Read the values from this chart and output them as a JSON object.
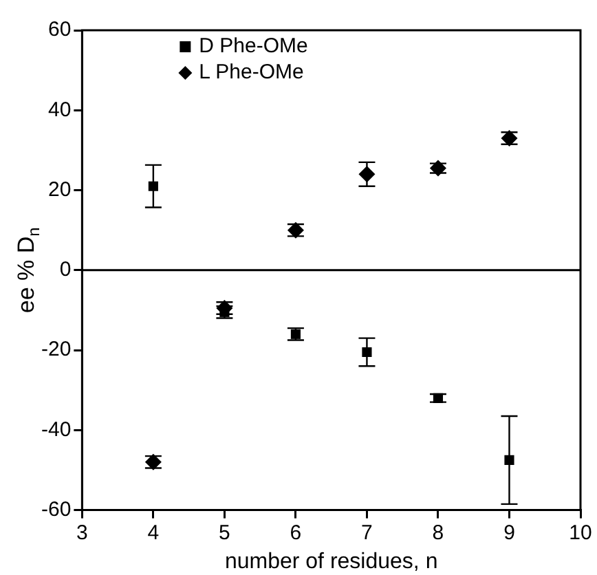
{
  "chart_data": {
    "type": "scatter",
    "xlabel": "number of residues, n",
    "ylabel": "ee % D$_{n}$",
    "x": [
      4,
      5,
      6,
      7,
      8,
      9
    ],
    "series": [
      {
        "name": "D Phe-OMe",
        "color": "#000000",
        "marker": "square",
        "values": [
          21,
          -10.5,
          -16,
          -20.5,
          -32,
          -47.5
        ],
        "errors": [
          5.3,
          1.5,
          1.5,
          3.5,
          1,
          11
        ]
      },
      {
        "name": "L Phe-OMe",
        "color": "#000000",
        "marker": "diamond",
        "values": [
          -48,
          -9.5,
          10,
          24,
          25.5,
          33
        ],
        "errors": [
          1.5,
          1.5,
          1.5,
          3,
          1.2,
          1.5
        ]
      }
    ],
    "xlim": [
      3,
      10
    ],
    "xticks": [
      3,
      4,
      5,
      6,
      7,
      8,
      9,
      10
    ],
    "ylim": [
      -60,
      60
    ],
    "yticks": [
      -60,
      -40,
      -20,
      0,
      20,
      40,
      60
    ],
    "ref_lines": [
      {
        "axis": "y",
        "value": 0,
        "color": "#000000"
      }
    ],
    "grid": false,
    "legend": "top left"
  }
}
